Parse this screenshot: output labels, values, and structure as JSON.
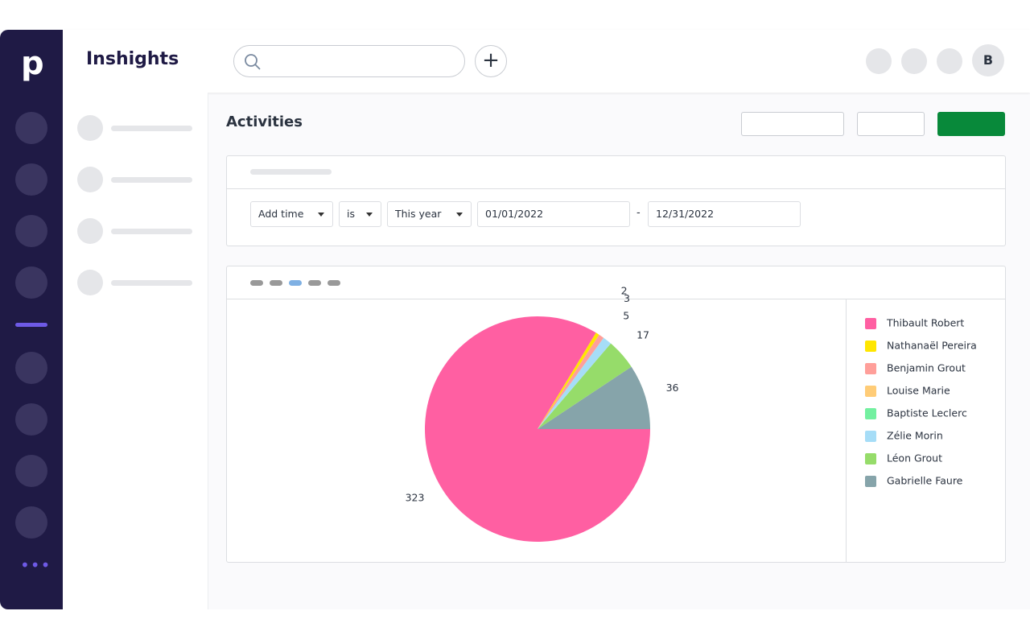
{
  "header": {
    "title": "Inshights",
    "avatar": "B"
  },
  "page": {
    "title": "Activities"
  },
  "filters": {
    "field": "Add time",
    "operator": "is",
    "period": "This year",
    "start": "01/01/2022",
    "separator": "-",
    "end": "12/31/2022"
  },
  "chart_data": {
    "type": "pie",
    "categories": [
      "Thibault Robert",
      "Nathanaël Pereira",
      "Benjamin Grout",
      "Louise Marie",
      "Baptiste Leclerc",
      "Zélie Morin",
      "Léon Grout",
      "Gabrielle Faure"
    ],
    "colors": [
      "#ff5fa2",
      "#ffe600",
      "#ff9f9a",
      "#ffcc77",
      "#73f0a0",
      "#a6ddf7",
      "#96dc6a",
      "#86a4aa"
    ],
    "values": [
      323,
      2,
      3,
      null,
      null,
      5,
      17,
      36
    ]
  }
}
